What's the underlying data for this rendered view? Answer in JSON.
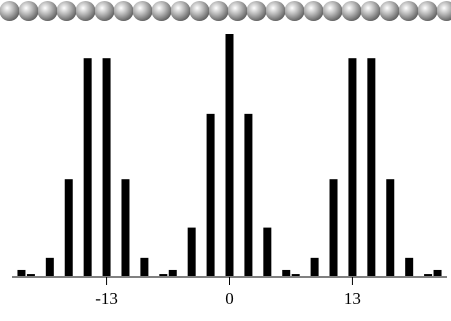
{
  "chart_data": {
    "type": "bar",
    "x": [
      -22,
      -21,
      -19,
      -17,
      -15,
      -13,
      -11,
      -9,
      -7,
      -6,
      -4,
      -2,
      0,
      2,
      4,
      6,
      7,
      9,
      11,
      13,
      15,
      17,
      19,
      21,
      22
    ],
    "values": [
      0.025,
      0.008,
      0.075,
      0.4,
      0.9,
      0.9,
      0.4,
      0.075,
      0.008,
      0.025,
      0.2,
      0.67,
      1.0,
      0.67,
      0.2,
      0.025,
      0.008,
      0.075,
      0.4,
      0.9,
      0.9,
      0.4,
      0.075,
      0.008,
      0.025
    ],
    "color": "#000000",
    "xlim": [
      -23,
      23
    ],
    "xticks": [
      -13,
      0,
      13
    ],
    "ylim": [
      0,
      1
    ]
  }
}
